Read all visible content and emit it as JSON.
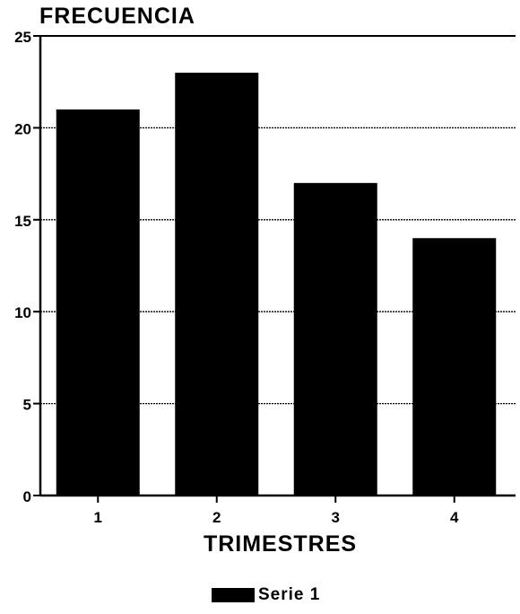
{
  "chart_data": {
    "type": "bar",
    "ylabel": "FRECUENCIA",
    "xlabel": "TRIMESTRES",
    "categories": [
      "1",
      "2",
      "3",
      "4"
    ],
    "series": [
      {
        "name": "Serie 1",
        "values": [
          21,
          23,
          17,
          14
        ],
        "color": "#000000"
      }
    ],
    "ylim": [
      0,
      25
    ],
    "yticks": [
      "0",
      "5",
      "10",
      "15",
      "20",
      "25"
    ],
    "grid": true,
    "legend": "bottom-center"
  }
}
